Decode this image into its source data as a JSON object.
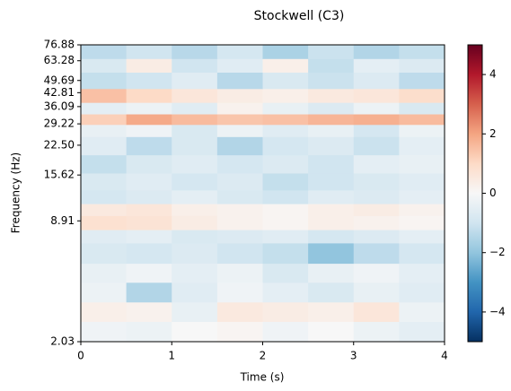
{
  "chart_data": {
    "type": "heatmap",
    "title": "Stockwell (C3)",
    "x_label": "Time (s)",
    "y_label": "Frequency (Hz)",
    "xlim": [
      0,
      4
    ],
    "xticks": [
      0,
      1,
      2,
      3,
      4
    ],
    "ylim": [
      2.03,
      76.88
    ],
    "y_log": true,
    "yticks": [
      2.03,
      8.91,
      15.62,
      {
        "value": 22.5,
        "label": "22.50"
      },
      29.22,
      36.09,
      42.81,
      49.69,
      63.28,
      76.88
    ],
    "x_bins": [
      0,
      0.5,
      1,
      1.5,
      2,
      2.5,
      3,
      3.5,
      4
    ],
    "y_bins": [
      2.03,
      2.6,
      3.3,
      4.2,
      5.3,
      6.8,
      8.0,
      9.5,
      11,
      13,
      16,
      20,
      25,
      29,
      33,
      38,
      45,
      55,
      65,
      76.88
    ],
    "z": [
      [
        -0.2,
        -0.3,
        0,
        0.1,
        -0.2,
        0,
        -0.3,
        -0.5
      ],
      [
        0.3,
        0.2,
        -0.4,
        0.5,
        0.4,
        0.3,
        0.6,
        -0.3
      ],
      [
        -0.3,
        -1.5,
        -0.6,
        -0.2,
        -0.5,
        -0.8,
        -0.4,
        -0.6
      ],
      [
        -0.4,
        -0.2,
        -0.5,
        -0.3,
        -0.8,
        -0.4,
        -0.2,
        -0.5
      ],
      [
        -0.8,
        -0.9,
        -0.7,
        -1.0,
        -1.2,
        -2.0,
        -1.3,
        -0.9
      ],
      [
        -0.6,
        -0.5,
        -0.8,
        -0.7,
        -0.6,
        -0.9,
        -0.7,
        -0.5
      ],
      [
        0.8,
        0.7,
        0.4,
        0.2,
        0.1,
        0.3,
        0.2,
        0.1
      ],
      [
        0.5,
        0.6,
        0.3,
        0.2,
        0.1,
        0.3,
        0.4,
        0.2
      ],
      [
        -0.9,
        -0.7,
        -0.5,
        -0.8,
        -1.0,
        -0.6,
        -0.7,
        -0.5
      ],
      [
        -0.8,
        -0.6,
        -0.9,
        -0.7,
        -1.2,
        -1.0,
        -0.8,
        -0.6
      ],
      [
        -1.2,
        -0.8,
        -0.6,
        -0.9,
        -0.7,
        -1.0,
        -0.5,
        -0.4
      ],
      [
        -0.6,
        -1.3,
        -0.8,
        -1.5,
        -0.9,
        -0.7,
        -1.1,
        -0.5
      ],
      [
        -0.4,
        -0.2,
        -0.8,
        -0.3,
        -0.6,
        -0.4,
        -0.9,
        -0.3
      ],
      [
        1.2,
        1.9,
        1.6,
        1.4,
        1.5,
        1.7,
        1.8,
        1.6
      ],
      [
        -0.5,
        -0.3,
        -0.6,
        0.2,
        -0.4,
        -0.7,
        -0.3,
        -0.8
      ],
      [
        1.5,
        1.0,
        0.6,
        0.4,
        0.3,
        0.5,
        0.6,
        0.9
      ],
      [
        -1.2,
        -1.0,
        -0.6,
        -1.4,
        -0.8,
        -1.1,
        -0.7,
        -1.3
      ],
      [
        -0.8,
        0.4,
        -1.0,
        -0.6,
        0.3,
        -1.2,
        -0.5,
        -0.7
      ],
      [
        -1.3,
        -1.0,
        -1.4,
        -0.9,
        -1.6,
        -1.1,
        -1.5,
        -1.2
      ]
    ],
    "colormap": [
      "#053061",
      "#2166ac",
      "#4393c3",
      "#92c5de",
      "#d1e5f0",
      "#f7f7f7",
      "#fddbc7",
      "#f4a582",
      "#d6604d",
      "#b2182b",
      "#67001f"
    ],
    "clim": [
      -5,
      5
    ],
    "cticks": [
      {
        "value": -4,
        "label": "−4"
      },
      {
        "value": -2,
        "label": "−2"
      },
      0,
      2,
      4
    ]
  }
}
